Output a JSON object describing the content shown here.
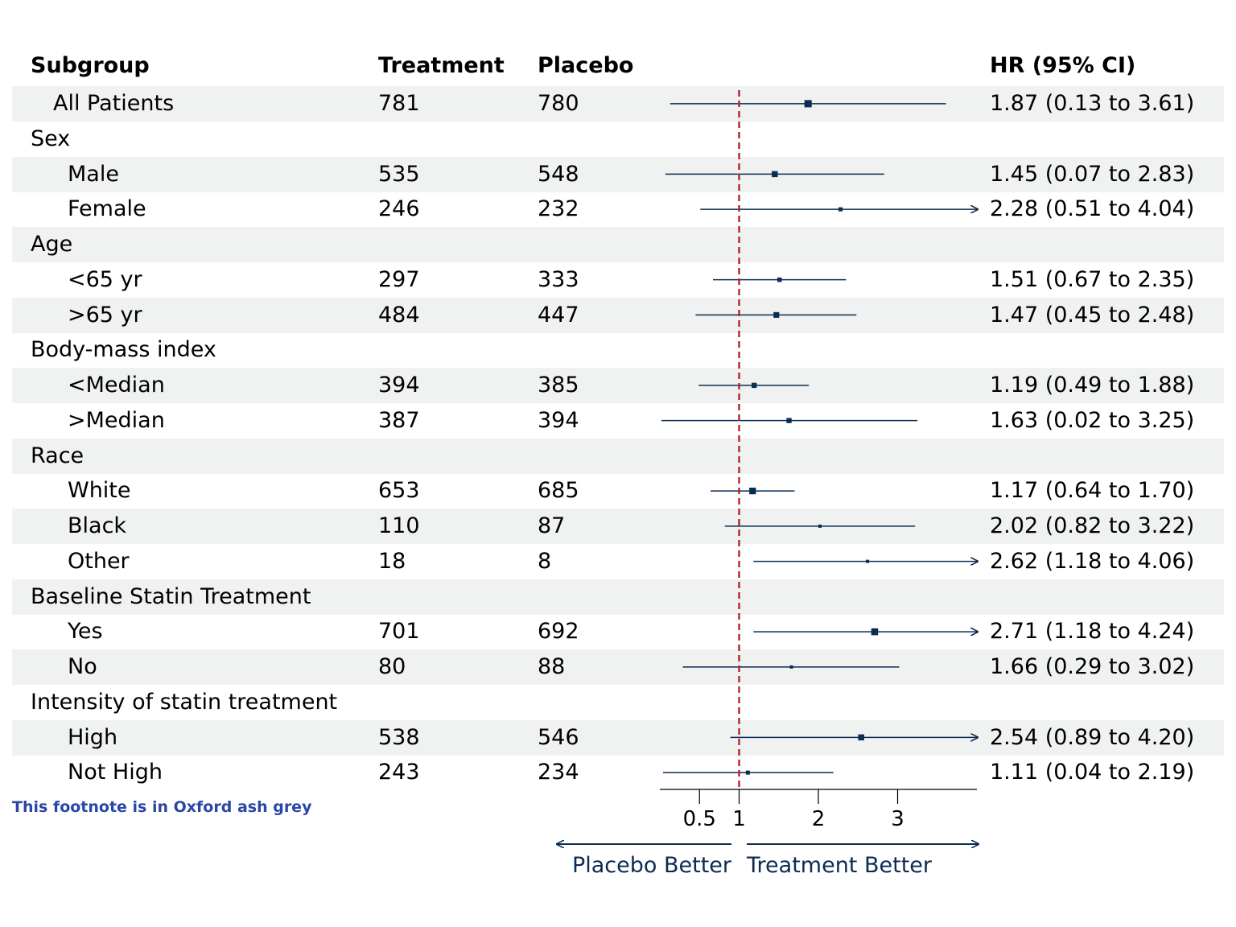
{
  "headers": {
    "subgroup": "Subgroup",
    "treatment": "Treatment",
    "placebo": "Placebo",
    "hr": "HR (95% CI)"
  },
  "footnote": "This footnote is in Oxford ash grey",
  "direction_labels": {
    "left": "Placebo Better",
    "right": "Treatment Better"
  },
  "colors": {
    "row_shade": "#eff2f1",
    "estimate": "#0b2b52",
    "reference_line": "#b3212f",
    "footnote": "#2a47a6"
  },
  "rows": [
    {
      "label": "All Patients",
      "level": 1,
      "treatment": "781",
      "placebo": "780",
      "hr_text": "1.87 (0.13 to 3.61)",
      "hr": 1.87,
      "lo": 0.13,
      "hi": 3.61,
      "shade": true
    },
    {
      "label": "Sex",
      "level": 0,
      "treatment": "",
      "placebo": "",
      "hr_text": "",
      "shade": false
    },
    {
      "label": "Male",
      "level": 2,
      "treatment": "535",
      "placebo": "548",
      "hr_text": "1.45 (0.07 to 2.83)",
      "hr": 1.45,
      "lo": 0.07,
      "hi": 2.83,
      "shade": true
    },
    {
      "label": "Female",
      "level": 2,
      "treatment": "246",
      "placebo": "232",
      "hr_text": "2.28 (0.51 to 4.04)",
      "hr": 2.28,
      "lo": 0.51,
      "hi": 4.04,
      "shade": false
    },
    {
      "label": "Age",
      "level": 0,
      "treatment": "",
      "placebo": "",
      "hr_text": "",
      "shade": true
    },
    {
      "label": "<65 yr",
      "level": 2,
      "treatment": "297",
      "placebo": "333",
      "hr_text": "1.51 (0.67 to 2.35)",
      "hr": 1.51,
      "lo": 0.67,
      "hi": 2.35,
      "shade": false
    },
    {
      "label": ">65 yr",
      "level": 2,
      "treatment": "484",
      "placebo": "447",
      "hr_text": "1.47 (0.45 to 2.48)",
      "hr": 1.47,
      "lo": 0.45,
      "hi": 2.48,
      "shade": true
    },
    {
      "label": "Body-mass index",
      "level": 0,
      "treatment": "",
      "placebo": "",
      "hr_text": "",
      "shade": false
    },
    {
      "label": "<Median",
      "level": 2,
      "treatment": "394",
      "placebo": "385",
      "hr_text": "1.19 (0.49 to 1.88)",
      "hr": 1.19,
      "lo": 0.49,
      "hi": 1.88,
      "shade": true
    },
    {
      "label": ">Median",
      "level": 2,
      "treatment": "387",
      "placebo": "394",
      "hr_text": "1.63 (0.02 to 3.25)",
      "hr": 1.63,
      "lo": 0.02,
      "hi": 3.25,
      "shade": false
    },
    {
      "label": "Race",
      "level": 0,
      "treatment": "",
      "placebo": "",
      "hr_text": "",
      "shade": true
    },
    {
      "label": "White",
      "level": 2,
      "treatment": "653",
      "placebo": "685",
      "hr_text": "1.17 (0.64 to 1.70)",
      "hr": 1.17,
      "lo": 0.64,
      "hi": 1.7,
      "shade": false
    },
    {
      "label": "Black",
      "level": 2,
      "treatment": "110",
      "placebo": "87",
      "hr_text": "2.02 (0.82 to 3.22)",
      "hr": 2.02,
      "lo": 0.82,
      "hi": 3.22,
      "shade": true
    },
    {
      "label": "Other",
      "level": 2,
      "treatment": "18",
      "placebo": "8",
      "hr_text": "2.62 (1.18 to 4.06)",
      "hr": 2.62,
      "lo": 1.18,
      "hi": 4.06,
      "shade": false
    },
    {
      "label": "Baseline Statin Treatment",
      "level": 0,
      "treatment": "",
      "placebo": "",
      "hr_text": "",
      "shade": true
    },
    {
      "label": "Yes",
      "level": 2,
      "treatment": "701",
      "placebo": "692",
      "hr_text": "2.71 (1.18 to 4.24)",
      "hr": 2.71,
      "lo": 1.18,
      "hi": 4.24,
      "shade": false
    },
    {
      "label": "No",
      "level": 2,
      "treatment": "80",
      "placebo": "88",
      "hr_text": "1.66 (0.29 to 3.02)",
      "hr": 1.66,
      "lo": 0.29,
      "hi": 3.02,
      "shade": true
    },
    {
      "label": "Intensity of statin treatment",
      "level": 0,
      "treatment": "",
      "placebo": "",
      "hr_text": "",
      "shade": false
    },
    {
      "label": "High",
      "level": 2,
      "treatment": "538",
      "placebo": "546",
      "hr_text": "2.54 (0.89 to 4.20)",
      "hr": 2.54,
      "lo": 0.89,
      "hi": 4.2,
      "shade": true
    },
    {
      "label": "Not High",
      "level": 2,
      "treatment": "243",
      "placebo": "234",
      "hr_text": "1.11 (0.04 to 2.19)",
      "hr": 1.11,
      "lo": 0.04,
      "hi": 2.19,
      "shade": false
    }
  ],
  "chart_data": {
    "type": "forest",
    "x_axis": {
      "ticks": [
        0.5,
        1,
        2,
        3
      ],
      "tick_labels": [
        "0.5",
        "1",
        "2",
        "3"
      ],
      "xlim": [
        0,
        4
      ]
    },
    "reference_line": 1,
    "series": [
      {
        "categories": [
          "All Patients",
          "Male",
          "Female",
          "<65 yr",
          ">65 yr",
          "<Median",
          ">Median",
          "White",
          "Black",
          "Other",
          "Yes",
          "No",
          "High",
          "Not High"
        ],
        "estimate": [
          1.87,
          1.45,
          2.28,
          1.51,
          1.47,
          1.19,
          1.63,
          1.17,
          2.02,
          2.62,
          2.71,
          1.66,
          2.54,
          1.11
        ],
        "lower": [
          0.13,
          0.07,
          0.51,
          0.67,
          0.45,
          0.49,
          0.02,
          0.64,
          0.82,
          1.18,
          1.18,
          0.29,
          0.89,
          0.04
        ],
        "upper": [
          3.61,
          2.83,
          4.04,
          2.35,
          2.48,
          1.88,
          3.25,
          1.7,
          3.22,
          4.06,
          4.24,
          3.02,
          4.2,
          2.19
        ]
      }
    ]
  }
}
